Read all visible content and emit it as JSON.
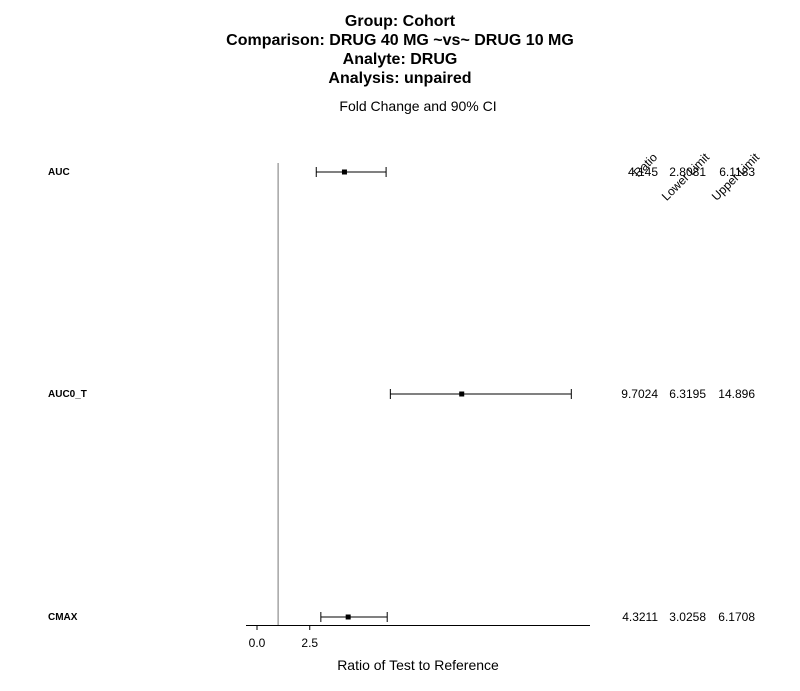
{
  "titles": [
    "Group: Cohort",
    "Comparison: DRUG 40 MG ~vs~ DRUG 10 MG",
    "Analyte: DRUG",
    "Analysis: unpaired"
  ],
  "subtitle": "Fold Change and 90% CI",
  "chart_data": {
    "type": "forest",
    "xlabel": "Ratio of Test to Reference",
    "x_ticks": [
      "0.0",
      "2.5"
    ],
    "xlim": [
      -0.5,
      15.0
    ],
    "reference_line": 1.0,
    "column_headers": [
      "Ratio",
      "Lower Limit",
      "Upper Limit"
    ],
    "rows": [
      {
        "label": "AUC",
        "ratio": 4.145,
        "lower": 2.8081,
        "upper": 6.1183,
        "ratio_text": "4.145",
        "lower_text": "2.8081",
        "upper_text": "6.1183"
      },
      {
        "label": "AUC0_T",
        "ratio": 9.7024,
        "lower": 6.3195,
        "upper": 14.896,
        "ratio_text": "9.7024",
        "lower_text": "6.3195",
        "upper_text": "14.896"
      },
      {
        "label": "CMAX",
        "ratio": 4.3211,
        "lower": 3.0258,
        "upper": 6.1708,
        "ratio_text": "4.3211",
        "lower_text": "3.0258",
        "upper_text": "6.1708"
      }
    ]
  }
}
